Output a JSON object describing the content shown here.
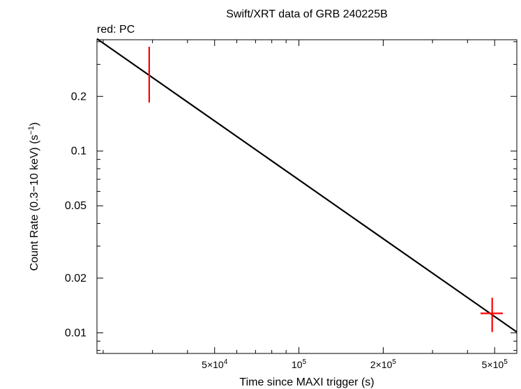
{
  "chart_data": {
    "type": "scatter",
    "title": "Swift/XRT data of GRB 240225B",
    "subtitle": "red: PC",
    "xlabel": "Time since MAXI trigger (s)",
    "ylabel": {
      "main": "Count Rate (0.3−10 keV) (s",
      "sup": "−1",
      "tail": ")"
    },
    "x_scale": "log",
    "y_scale": "log",
    "xlim": [
      19000,
      600000
    ],
    "ylim": [
      0.0077,
      0.41
    ],
    "x_ticks": [
      {
        "value": 50000,
        "mant": "5×10",
        "exp": "4"
      },
      {
        "value": 100000,
        "mant": "10",
        "exp": "5"
      },
      {
        "value": 200000,
        "mant": "2×10",
        "exp": "5"
      },
      {
        "value": 500000,
        "mant": "5×10",
        "exp": "5"
      }
    ],
    "y_ticks": [
      {
        "value": 0.01,
        "label": "0.01"
      },
      {
        "value": 0.02,
        "label": "0.02"
      },
      {
        "value": 0.05,
        "label": "0.05"
      },
      {
        "value": 0.1,
        "label": "0.1"
      },
      {
        "value": 0.2,
        "label": "0.2"
      }
    ],
    "series": [
      {
        "mode": "PC",
        "color": "#ff0000",
        "points": [
          {
            "x": 29200,
            "xerr": [
              29000,
              29400
            ],
            "y": 0.275,
            "yerr": [
              0.185,
              0.375
            ]
          },
          {
            "x": 490000,
            "xerr": [
              445000,
              535000
            ],
            "y": 0.0128,
            "yerr": [
              0.0101,
              0.0156
            ]
          }
        ]
      }
    ],
    "model_line": {
      "color": "#000000",
      "points": [
        [
          19000,
          0.415
        ],
        [
          600000,
          0.0101
        ]
      ]
    },
    "grid": false,
    "legend": "none"
  }
}
